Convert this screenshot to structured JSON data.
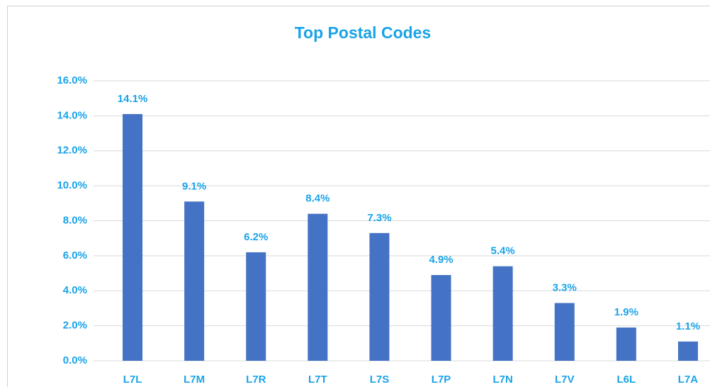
{
  "chart_data": {
    "type": "bar",
    "title": "Top Postal Codes",
    "categories": [
      "L7L",
      "L7M",
      "L7R",
      "L7T",
      "L7S",
      "L7P",
      "L7N",
      "L7V",
      "L6L",
      "L7A"
    ],
    "values": [
      14.1,
      9.1,
      6.2,
      8.4,
      7.3,
      4.9,
      5.4,
      3.3,
      1.9,
      1.1
    ],
    "value_labels": [
      "14.1%",
      "9.1%",
      "6.2%",
      "8.4%",
      "7.3%",
      "4.9%",
      "5.4%",
      "3.3%",
      "1.9%",
      "1.1%"
    ],
    "color": "#4472c4",
    "ylim": [
      0,
      16
    ],
    "yticks": [
      {
        "value": 0,
        "label": "0.0%"
      },
      {
        "value": 2,
        "label": "2.0%"
      },
      {
        "value": 4,
        "label": "4.0%"
      },
      {
        "value": 6,
        "label": "6.0%"
      },
      {
        "value": 8,
        "label": "8.0%"
      },
      {
        "value": 10,
        "label": "10.0%"
      },
      {
        "value": 12,
        "label": "12.0%"
      },
      {
        "value": 14,
        "label": "14.0%"
      },
      {
        "value": 16,
        "label": "16.0%"
      }
    ],
    "grid": true
  }
}
